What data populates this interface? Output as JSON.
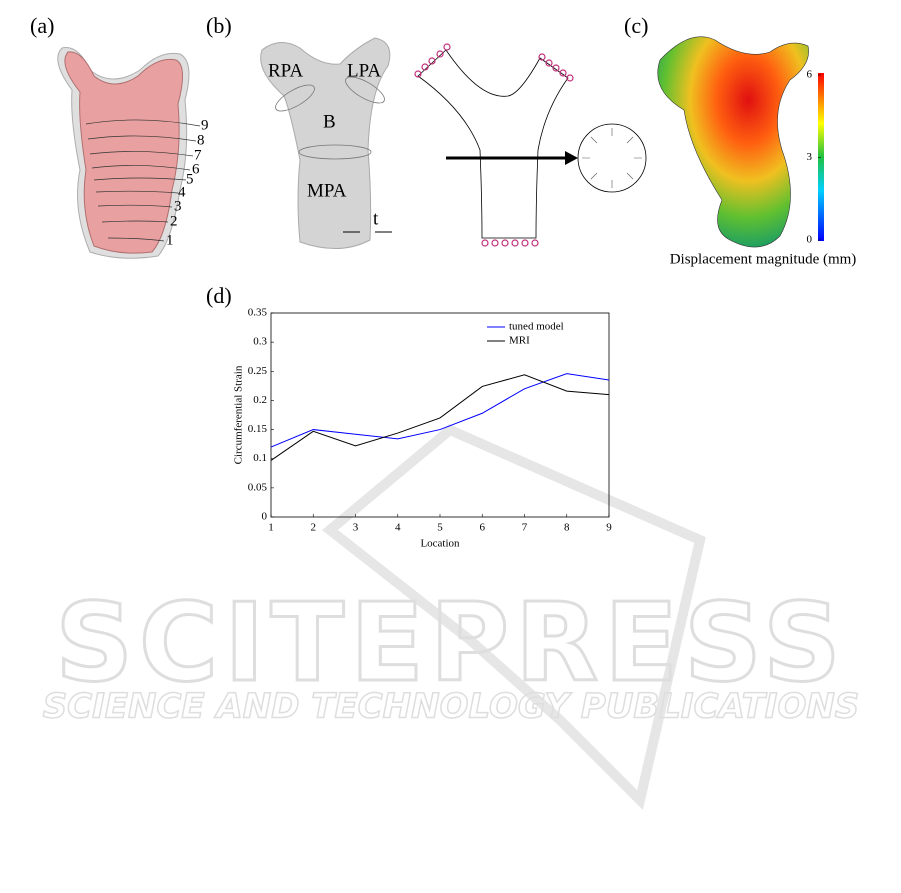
{
  "panel_labels": [
    "(a)",
    "(b)",
    "(c)",
    "(d)"
  ],
  "panel_a": {
    "section_labels": [
      "1",
      "2",
      "3",
      "4",
      "5",
      "6",
      "7",
      "8",
      "9"
    ]
  },
  "panel_b": {
    "labels": [
      "RPA",
      "LPA",
      "B",
      "MPA",
      "t"
    ]
  },
  "panel_c": {
    "colorbar": {
      "label": "Displacement magnitude (mm)",
      "lim": [
        0,
        6
      ],
      "ticks": [
        0,
        3,
        6
      ]
    }
  },
  "watermark": {
    "title": "SCITEPRESS",
    "subtitle": "SCIENCE AND TECHNOLOGY PUBLICATIONS"
  },
  "chart_data": {
    "type": "line",
    "x_label": "Location",
    "y_label": "Circumferential Strain",
    "x": [
      1,
      2,
      3,
      4,
      5,
      6,
      7,
      8,
      9
    ],
    "series": [
      {
        "name": "tuned model",
        "color": "#0000ff",
        "values": [
          0.12,
          0.15,
          0.142,
          0.134,
          0.15,
          0.178,
          0.22,
          0.246,
          0.235
        ]
      },
      {
        "name": "MRI",
        "color": "#000000",
        "values": [
          0.097,
          0.147,
          0.122,
          0.144,
          0.17,
          0.224,
          0.244,
          0.216,
          0.21
        ]
      }
    ],
    "xlim": [
      1,
      9
    ],
    "ylim": [
      0,
      0.35
    ],
    "xticks": [
      1,
      2,
      3,
      4,
      5,
      6,
      7,
      8,
      9
    ],
    "yticks": [
      0,
      0.05,
      0.1,
      0.15,
      0.2,
      0.25,
      0.3,
      0.35
    ],
    "legend": "upper right"
  }
}
